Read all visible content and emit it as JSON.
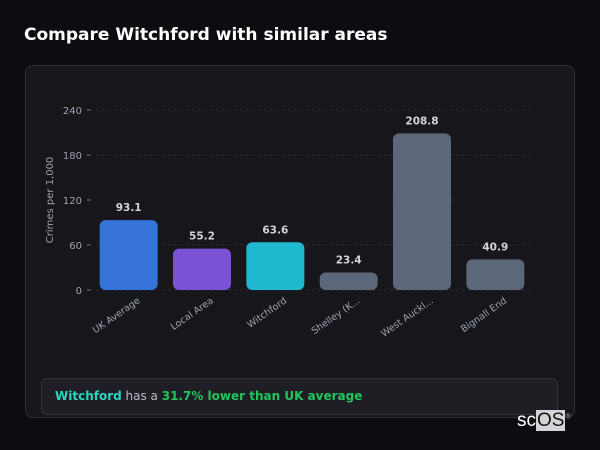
{
  "title": "Compare Witchford with similar areas",
  "chart_data": {
    "type": "bar",
    "ylabel": "Crimes per 1,000",
    "ylim": [
      0,
      240
    ],
    "yticks": [
      0,
      60,
      120,
      180,
      240
    ],
    "grid": true,
    "categories": [
      "UK Average",
      "Local Area",
      "Witchford",
      "Shelley (K...",
      "West Auckl...",
      "Bignall End"
    ],
    "values": [
      93.1,
      55.2,
      63.6,
      23.4,
      208.8,
      40.9
    ],
    "labels": [
      "93.1",
      "55.2",
      "63.6",
      "23.4",
      "208.8",
      "40.9"
    ],
    "colors": [
      "#3573d9",
      "#7b52d6",
      "#20b8cf",
      "#5c677a",
      "#5c677a",
      "#5c677a"
    ]
  },
  "summary": {
    "place": "Witchford",
    "middle": " has a ",
    "stat": "31.7% lower than UK average",
    "place_color": "#2dd4bf",
    "stat_color": "#22c55e"
  },
  "logo": {
    "text_a": "sc",
    "text_b": "OS",
    "mark": "®"
  }
}
